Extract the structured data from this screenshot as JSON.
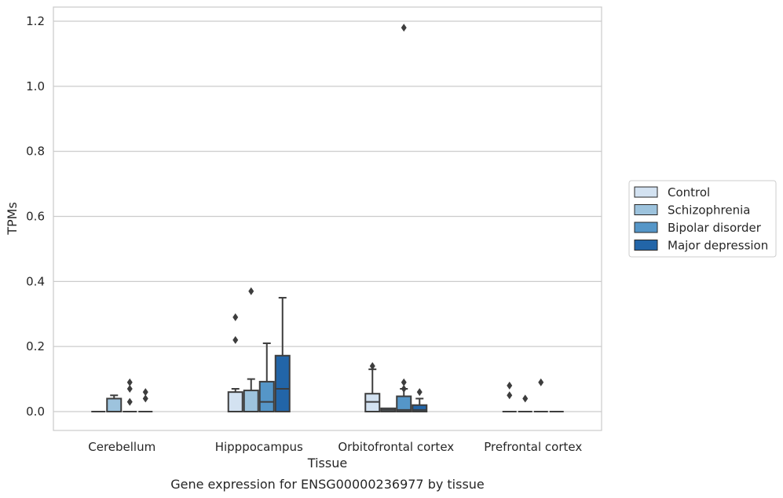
{
  "chart_data": {
    "type": "box",
    "xlabel": "Tissue",
    "ylabel": "TPMs",
    "caption": "Gene expression for ENSG00000236977 by tissue",
    "ylim": [
      -0.058,
      1.24
    ],
    "yticks": [
      "0.0",
      "0.2",
      "0.4",
      "0.6",
      "0.8",
      "1.0",
      "1.2"
    ],
    "ytick_values": [
      0,
      0.2,
      0.4,
      0.6,
      0.8,
      1.0,
      1.2
    ],
    "grid": true,
    "legend_position": "right",
    "categories": [
      "Cerebellum",
      "Hipppocampus",
      "Orbitofrontal cortex",
      "Prefrontal cortex"
    ],
    "series": [
      {
        "name": "Control",
        "color": "#d3e2f1",
        "boxes": [
          {
            "q1": 0,
            "median": 0,
            "q3": 0,
            "whisker_low": 0,
            "whisker_high": 0,
            "outliers": []
          },
          {
            "q1": 0,
            "median": 0,
            "q3": 0.06,
            "whisker_low": 0,
            "whisker_high": 0.07,
            "outliers": [
              0.22,
              0.29
            ]
          },
          {
            "q1": 0,
            "median": 0.03,
            "q3": 0.055,
            "whisker_low": 0,
            "whisker_high": 0.13,
            "outliers": [
              0.14
            ]
          },
          {
            "q1": 0,
            "median": 0,
            "q3": 0,
            "whisker_low": 0,
            "whisker_high": 0,
            "outliers": [
              0.05,
              0.08
            ]
          }
        ]
      },
      {
        "name": "Schizophrenia",
        "color": "#9dc3dd",
        "boxes": [
          {
            "q1": 0,
            "median": 0,
            "q3": 0.04,
            "whisker_low": 0,
            "whisker_high": 0.05,
            "outliers": []
          },
          {
            "q1": 0,
            "median": 0,
            "q3": 0.065,
            "whisker_low": 0,
            "whisker_high": 0.1,
            "outliers": [
              0.37
            ]
          },
          {
            "q1": 0,
            "median": 0.005,
            "q3": 0.01,
            "whisker_low": 0,
            "whisker_high": 0.01,
            "outliers": []
          },
          {
            "q1": 0,
            "median": 0,
            "q3": 0,
            "whisker_low": 0,
            "whisker_high": 0,
            "outliers": [
              0.04
            ]
          }
        ]
      },
      {
        "name": "Bipolar disorder",
        "color": "#5596c8",
        "boxes": [
          {
            "q1": 0,
            "median": 0,
            "q3": 0,
            "whisker_low": 0,
            "whisker_high": 0,
            "outliers": [
              0.03,
              0.07,
              0.09
            ]
          },
          {
            "q1": 0,
            "median": 0.03,
            "q3": 0.092,
            "whisker_low": 0,
            "whisker_high": 0.21,
            "outliers": []
          },
          {
            "q1": 0,
            "median": 0.005,
            "q3": 0.047,
            "whisker_low": 0,
            "whisker_high": 0.07,
            "outliers": [
              0.07,
              0.09,
              1.18
            ]
          },
          {
            "q1": 0,
            "median": 0,
            "q3": 0,
            "whisker_low": 0,
            "whisker_high": 0,
            "outliers": [
              0.09
            ]
          }
        ]
      },
      {
        "name": "Major depression",
        "color": "#2265a8",
        "boxes": [
          {
            "q1": 0,
            "median": 0,
            "q3": 0,
            "whisker_low": 0,
            "whisker_high": 0,
            "outliers": [
              0.04,
              0.06
            ]
          },
          {
            "q1": 0,
            "median": 0.07,
            "q3": 0.172,
            "whisker_low": 0,
            "whisker_high": 0.35,
            "outliers": []
          },
          {
            "q1": 0,
            "median": 0.005,
            "q3": 0.02,
            "whisker_low": 0,
            "whisker_high": 0.04,
            "outliers": [
              0.06
            ]
          },
          {
            "q1": 0,
            "median": 0,
            "q3": 0,
            "whisker_low": 0,
            "whisker_high": 0,
            "outliers": []
          }
        ]
      }
    ]
  }
}
